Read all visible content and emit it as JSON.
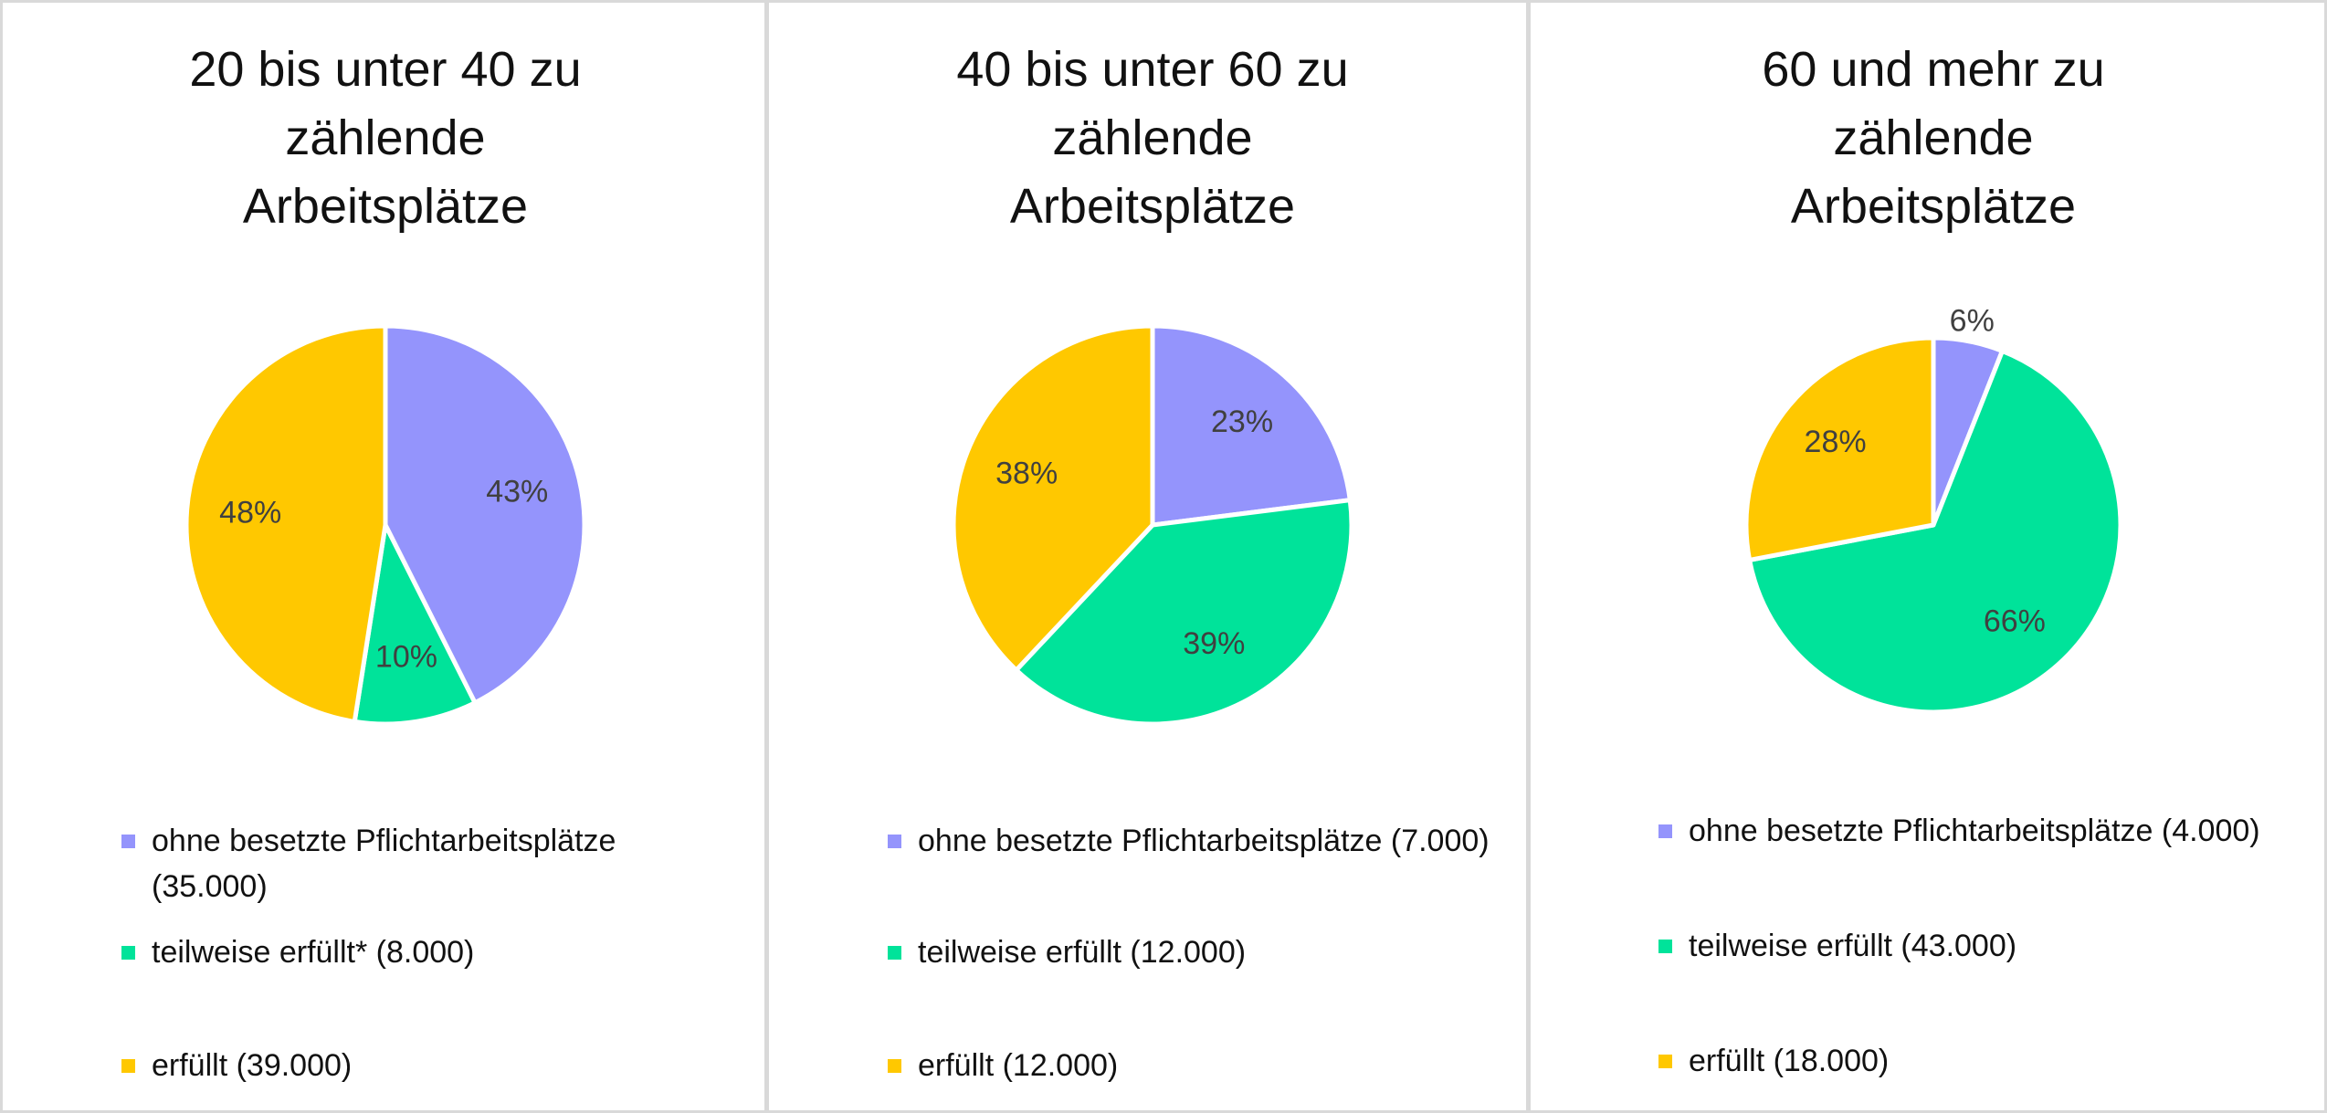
{
  "chart_data": [
    {
      "type": "pie",
      "title": "20 bis unter 40 zu zählende Arbeitsplätze",
      "categories": [
        "ohne besetzte Pflichtarbeitsplätze (35.000)",
        "teilweise erfüllt* (8.000)",
        "erfüllt (39.000)"
      ],
      "values": [
        43,
        10,
        48
      ],
      "value_labels": [
        "43%",
        "10%",
        "48%"
      ],
      "colors": [
        "#9494fc",
        "#00e39a",
        "#ffc800"
      ]
    },
    {
      "type": "pie",
      "title": "40 bis unter 60 zu zählende Arbeitsplätze",
      "categories": [
        "ohne besetzte Pflichtarbeitsplätze (7.000)",
        "teilweise erfüllt (12.000)",
        "erfüllt (12.000)"
      ],
      "values": [
        23,
        39,
        38
      ],
      "value_labels": [
        "23%",
        "39%",
        "38%"
      ],
      "colors": [
        "#9494fc",
        "#00e39a",
        "#ffc800"
      ]
    },
    {
      "type": "pie",
      "title": "60 und mehr zu zählende Arbeitsplätze",
      "categories": [
        "ohne besetzte Pflichtarbeitsplätze (4.000)",
        "teilweise erfüllt (43.000)",
        "erfüllt (18.000)"
      ],
      "values": [
        6,
        66,
        28
      ],
      "value_labels": [
        "6%",
        "66%",
        "28%"
      ],
      "colors": [
        "#9494fc",
        "#00e39a",
        "#ffc800"
      ]
    }
  ]
}
